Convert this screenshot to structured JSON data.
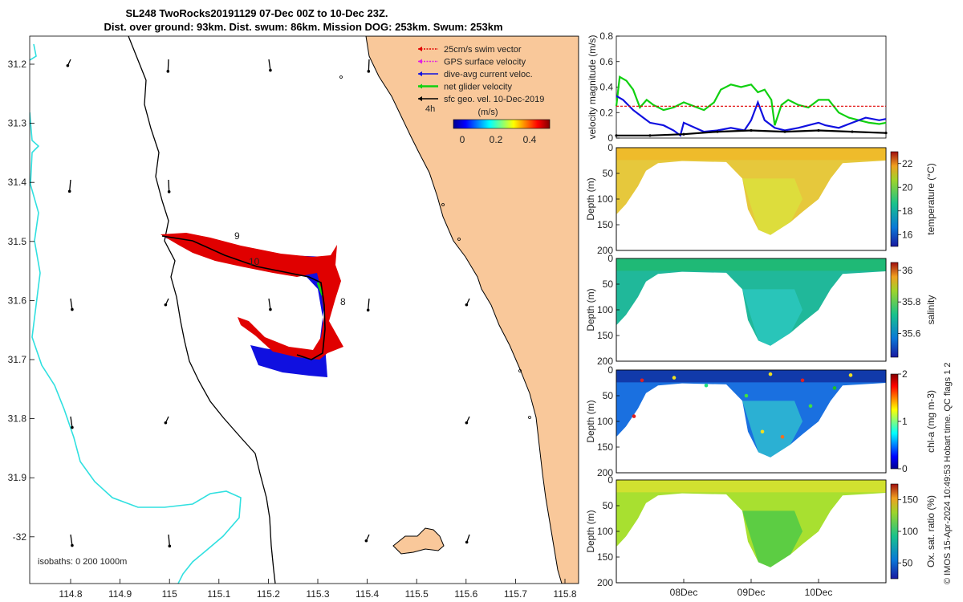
{
  "title_line1": "SL248 TwoRocks20191129 07-Dec 00Z to 10-Dec 23Z.",
  "title_line2": "Dist. over ground: 93km. Dist. swum: 86km. Mission DOG: 253km. Swum: 253km",
  "legend": {
    "items": [
      {
        "label": "25cm/s swim vector",
        "color": "#e00000"
      },
      {
        "label": "GPS surface velocity",
        "color": "#e020e0"
      },
      {
        "label": "dive-avg current veloc.",
        "color": "#1010e0"
      },
      {
        "label": "net glider velocity",
        "color": "#10d010"
      },
      {
        "label": "sfc geo. vel. 10-Dec-2019",
        "color": "#000000"
      }
    ],
    "time_marker": "4h",
    "colorbar_title": "(m/s)",
    "colorbar_ticks": [
      "0",
      "0.2",
      "0.4"
    ]
  },
  "map": {
    "isobaths_label": "isobaths: 0   200  1000m",
    "lon_ticks": [
      "114.8",
      "114.9",
      "115",
      "115.1",
      "115.2",
      "115.3",
      "115.4",
      "115.5",
      "115.6",
      "115.7",
      "115.8"
    ],
    "lat_ticks": [
      "31.2",
      "31.3",
      "31.4",
      "31.5",
      "31.6",
      "31.7",
      "31.8",
      "31.9",
      "-32"
    ],
    "day_labels": [
      "9",
      "10",
      "8"
    ],
    "land_color": "#f9c89a",
    "isobath_200_color": "#000000",
    "isobath_1000_color": "#30e0e0"
  },
  "footer": "© IMOS 15-Apr-2024 10:49:53 Hobart time. QC flags 1  2",
  "time_ticks": [
    "08Dec",
    "09Dec",
    "10Dec"
  ],
  "chart_data": [
    {
      "type": "line",
      "title": "",
      "ylabel": "velocity magnitude (m/s)",
      "ylim": [
        0,
        0.8
      ],
      "yticks": [
        "0",
        "0.2",
        "0.4",
        "0.6",
        "0.8"
      ],
      "x_range_days": [
        7.0,
        11.0
      ],
      "series": [
        {
          "name": "net glider velocity",
          "color": "#10d010",
          "x": [
            7.0,
            7.05,
            7.15,
            7.25,
            7.35,
            7.45,
            7.55,
            7.7,
            7.85,
            8.0,
            8.15,
            8.3,
            8.45,
            8.55,
            8.7,
            8.85,
            9.0,
            9.1,
            9.2,
            9.3,
            9.35,
            9.45,
            9.55,
            9.7,
            9.85,
            10.0,
            10.15,
            10.3,
            10.45,
            10.6,
            10.75,
            10.9,
            11.0
          ],
          "y": [
            0.25,
            0.48,
            0.45,
            0.38,
            0.24,
            0.3,
            0.26,
            0.22,
            0.24,
            0.28,
            0.25,
            0.22,
            0.28,
            0.38,
            0.42,
            0.4,
            0.42,
            0.36,
            0.38,
            0.3,
            0.1,
            0.26,
            0.3,
            0.26,
            0.24,
            0.3,
            0.3,
            0.2,
            0.16,
            0.14,
            0.12,
            0.11,
            0.12
          ]
        },
        {
          "name": "dive-avg current veloc.",
          "color": "#1010e0",
          "x": [
            7.0,
            7.1,
            7.25,
            7.4,
            7.5,
            7.7,
            7.85,
            7.95,
            8.0,
            8.3,
            8.5,
            8.7,
            8.9,
            9.0,
            9.1,
            9.2,
            9.35,
            9.5,
            9.7,
            9.85,
            10.0,
            10.1,
            10.3,
            10.5,
            10.7,
            10.9,
            11.0
          ],
          "y": [
            0.33,
            0.3,
            0.22,
            0.16,
            0.12,
            0.1,
            0.06,
            0.02,
            0.12,
            0.05,
            0.06,
            0.08,
            0.06,
            0.14,
            0.28,
            0.14,
            0.08,
            0.06,
            0.08,
            0.1,
            0.12,
            0.1,
            0.08,
            0.12,
            0.16,
            0.14,
            0.15
          ]
        },
        {
          "name": "25cm/s swim vector",
          "color": "#e00000",
          "x": [
            7.0,
            11.0
          ],
          "y": [
            0.25,
            0.25
          ]
        },
        {
          "name": "sfc geo. vel.",
          "color": "#000000",
          "x": [
            7.0,
            7.5,
            8.0,
            8.5,
            9.0,
            9.5,
            10.0,
            10.5,
            11.0
          ],
          "y": [
            0.02,
            0.02,
            0.03,
            0.05,
            0.06,
            0.05,
            0.06,
            0.05,
            0.04
          ]
        }
      ]
    },
    {
      "type": "heatmap",
      "ylabel": "Depth (m)",
      "colorbar_label": "temperature (°C)",
      "colorbar_ticks": [
        "16",
        "18",
        "20",
        "22"
      ],
      "clim": [
        15,
        23
      ],
      "ylim": [
        0,
        200
      ],
      "yticks": [
        "0",
        "50",
        "100",
        "150",
        "200"
      ],
      "section_max_depth_m": 170,
      "typical_value": 21
    },
    {
      "type": "heatmap",
      "ylabel": "Depth (m)",
      "colorbar_label": "salinity",
      "colorbar_ticks": [
        "35.6",
        "35.8",
        "36"
      ],
      "clim": [
        35.45,
        36.05
      ],
      "ylim": [
        0,
        200
      ],
      "yticks": [
        "0",
        "50",
        "100",
        "150",
        "200"
      ],
      "section_max_depth_m": 170,
      "typical_value": 35.7
    },
    {
      "type": "heatmap",
      "ylabel": "Depth (m)",
      "colorbar_label": "chl-a (mg m-3)",
      "colorbar_ticks": [
        "0",
        "1",
        "2"
      ],
      "clim": [
        0,
        2
      ],
      "ylim": [
        0,
        200
      ],
      "yticks": [
        "0",
        "50",
        "100",
        "150",
        "200"
      ],
      "section_max_depth_m": 170,
      "typical_value": 0.3
    },
    {
      "type": "heatmap",
      "ylabel": "Depth (m)",
      "colorbar_label": "Ox. sat. ratio (%)",
      "colorbar_ticks": [
        "50",
        "100",
        "150"
      ],
      "clim": [
        25,
        175
      ],
      "ylim": [
        0,
        200
      ],
      "yticks": [
        "0",
        "50",
        "100",
        "150",
        "200"
      ],
      "section_max_depth_m": 170,
      "typical_value": 120
    }
  ]
}
